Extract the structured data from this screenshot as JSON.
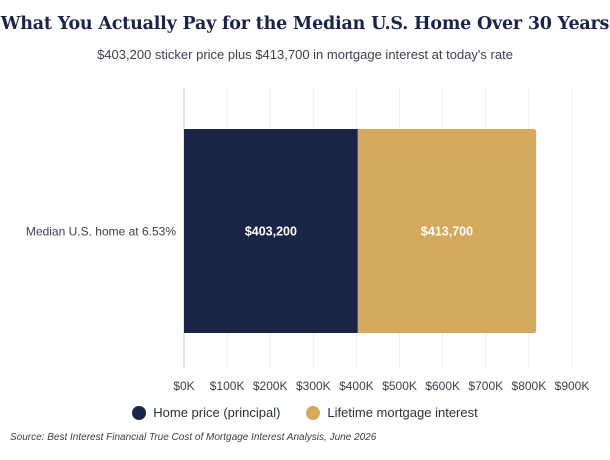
{
  "title": "What You Actually Pay for the Median U.S. Home Over 30 Years",
  "subtitle": "$403,200 sticker price plus $413,700 in mortgage interest at today's rate",
  "source": "Source: Best Interest Financial True Cost of Mortgage Interest Analysis, June 2026",
  "chart_data": {
    "type": "bar",
    "orientation": "horizontal",
    "stacked": true,
    "categories": [
      "Median U.S. home at 6.53%"
    ],
    "series": [
      {
        "name": "Home price (principal)",
        "values": [
          403200
        ],
        "label": "$403,200",
        "color": "#1a2447"
      },
      {
        "name": "Lifetime mortgage interest",
        "values": [
          413700
        ],
        "label": "$413,700",
        "color": "#d4a85d"
      }
    ],
    "xlim": [
      0,
      900000
    ],
    "xticks": [
      0,
      100000,
      200000,
      300000,
      400000,
      500000,
      600000,
      700000,
      800000,
      900000
    ],
    "xtick_labels": [
      "$0K",
      "$100K",
      "$200K",
      "$300K",
      "$400K",
      "$500K",
      "$600K",
      "$700K",
      "$800K",
      "$900K"
    ],
    "grid": "vertical",
    "legend": "bottom-center"
  }
}
